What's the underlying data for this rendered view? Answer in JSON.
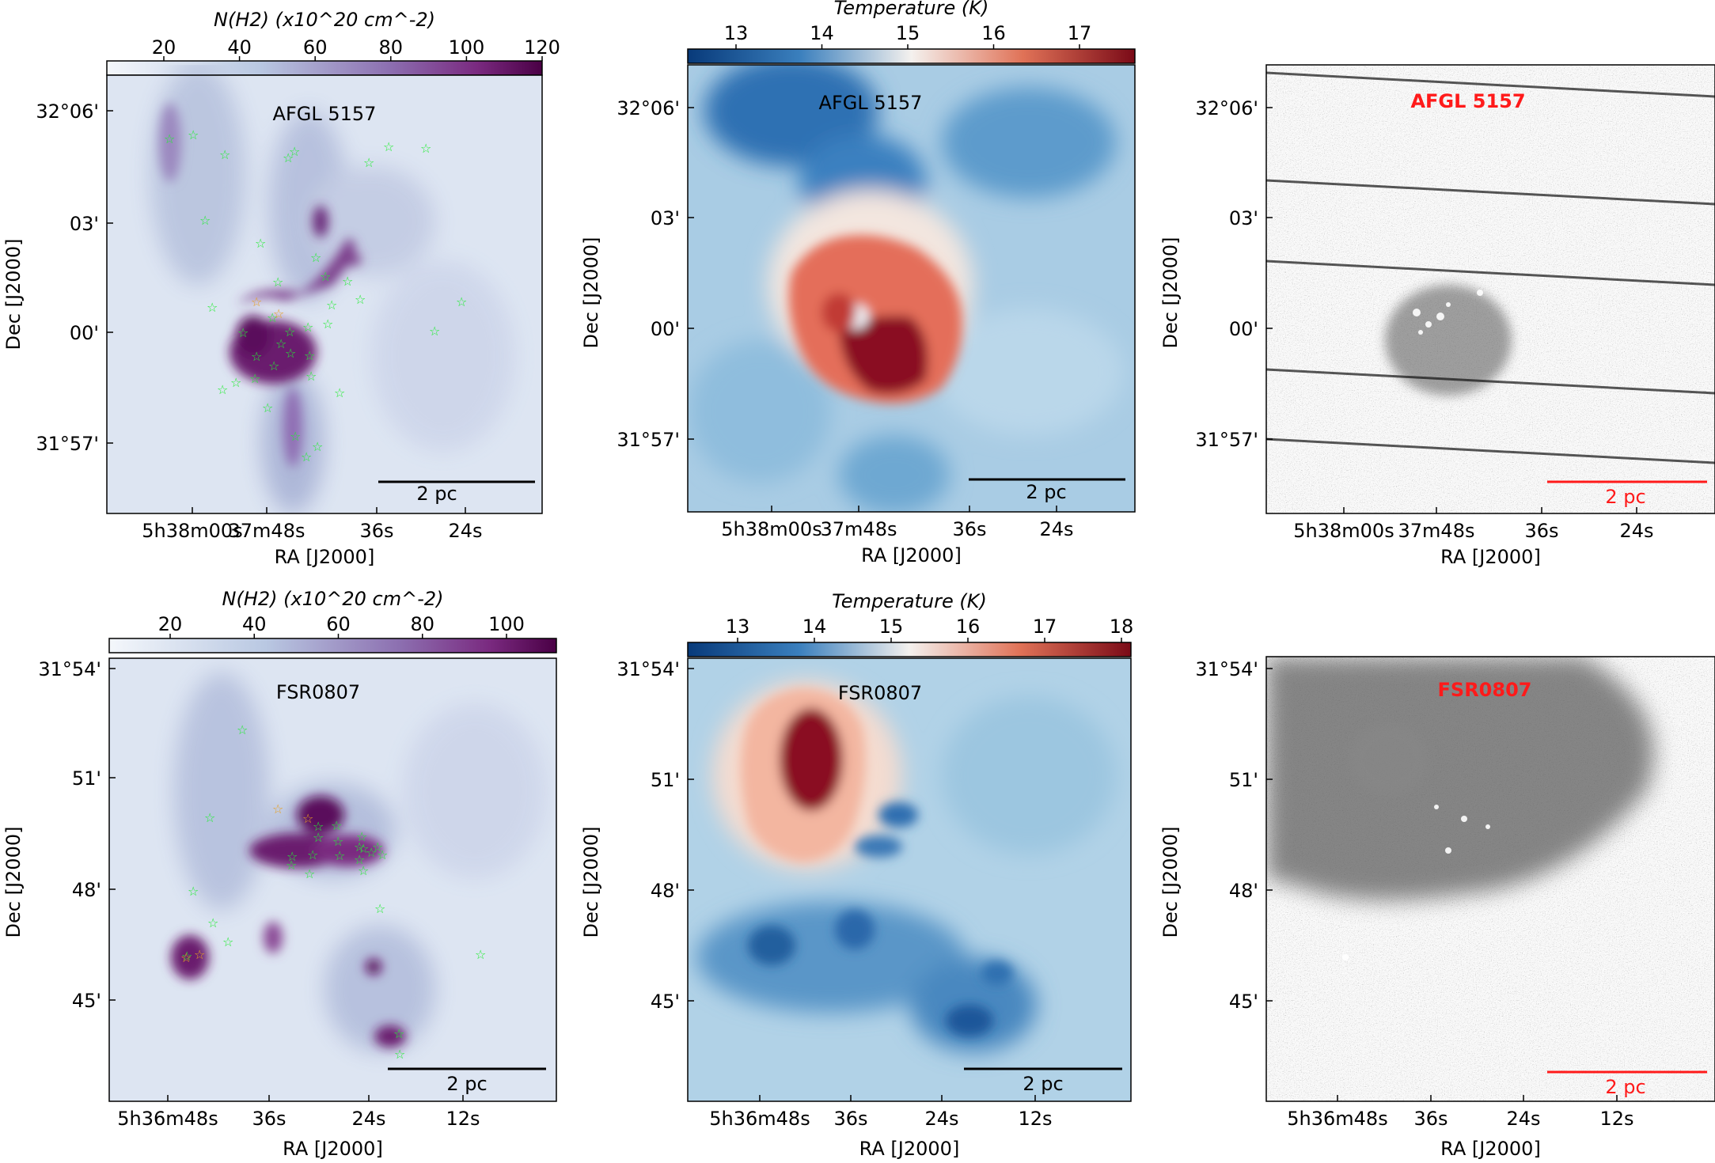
{
  "figure": {
    "panels": [
      {
        "id": "nh2-afgl",
        "kind": "column_density",
        "title": "AFGL 5157",
        "colorbar": {
          "label": "N(H2) (x10^20 cm^-2)",
          "ticks": [
            "20",
            "40",
            "60",
            "80",
            "100",
            "120"
          ]
        },
        "y_ticks": [
          "32°06'",
          "03'",
          "00'",
          "31°57'"
        ],
        "x_ticks": [
          "5h38m00s",
          "37m48s",
          "36s",
          "24s"
        ],
        "xlabel": "RA [J2000]",
        "ylabel": "Dec [J2000]",
        "scalebar": "2 pc"
      },
      {
        "id": "temp-afgl",
        "kind": "temperature",
        "title": "AFGL 5157",
        "colorbar": {
          "label": "Temperature (K)",
          "ticks": [
            "13",
            "14",
            "15",
            "16",
            "17"
          ]
        },
        "y_ticks": [
          "32°06'",
          "03'",
          "00'",
          "31°57'"
        ],
        "x_ticks": [
          "5h38m00s",
          "37m48s",
          "36s",
          "24s"
        ],
        "xlabel": "RA [J2000]",
        "ylabel": "Dec [J2000]",
        "scalebar": "2 pc"
      },
      {
        "id": "img-afgl",
        "kind": "optical",
        "title": "AFGL 5157",
        "y_ticks": [
          "32°06'",
          "03'",
          "00'",
          "31°57'"
        ],
        "x_ticks": [
          "5h38m00s",
          "37m48s",
          "36s",
          "24s"
        ],
        "xlabel": "RA [J2000]",
        "ylabel": "Dec [J2000]",
        "scalebar": "2 pc"
      },
      {
        "id": "nh2-fsr",
        "kind": "column_density",
        "title": "FSR0807",
        "colorbar": {
          "label": "N(H2) (x10^20 cm^-2)",
          "ticks": [
            "20",
            "40",
            "60",
            "80",
            "100"
          ]
        },
        "y_ticks": [
          "31°54'",
          "51'",
          "48'",
          "45'"
        ],
        "x_ticks": [
          "5h36m48s",
          "36s",
          "24s",
          "12s"
        ],
        "xlabel": "RA [J2000]",
        "ylabel": "Dec [J2000]",
        "scalebar": "2 pc"
      },
      {
        "id": "temp-fsr",
        "kind": "temperature",
        "title": "FSR0807",
        "colorbar": {
          "label": "Temperature (K)",
          "ticks": [
            "13",
            "14",
            "15",
            "16",
            "17",
            "18"
          ]
        },
        "y_ticks": [
          "31°54'",
          "51'",
          "48'",
          "45'"
        ],
        "x_ticks": [
          "5h36m48s",
          "36s",
          "24s",
          "12s"
        ],
        "xlabel": "RA [J2000]",
        "ylabel": "Dec [J2000]",
        "scalebar": "2 pc"
      },
      {
        "id": "img-fsr",
        "kind": "optical",
        "title": "FSR0807",
        "y_ticks": [
          "31°54'",
          "51'",
          "48'",
          "45'"
        ],
        "x_ticks": [
          "5h36m48s",
          "36s",
          "24s",
          "12s"
        ],
        "xlabel": "RA [J2000]",
        "ylabel": "Dec [J2000]",
        "scalebar": "2 pc"
      }
    ],
    "colors": {
      "nh2_low": "#eef3fa",
      "nh2_high": "#4a0045",
      "temp_low": "#083a7a",
      "temp_mid": "#f4f1ee",
      "temp_high": "#7a0a17",
      "star_green": "#22ee33",
      "star_orange": "#e8a020",
      "label_red": "#ff1a1a"
    }
  }
}
